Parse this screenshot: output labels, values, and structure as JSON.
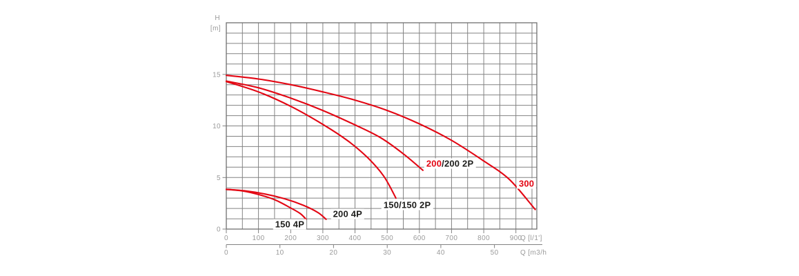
{
  "page": {
    "background": "#ffffff"
  },
  "chart_data": {
    "type": "line",
    "title": "",
    "description": "Pump performance curves: head H [m] versus flow rate Q",
    "grid": true,
    "legend_position": "inline-labels-on-curves",
    "y_axis": {
      "label_lines": [
        "H",
        "[m]"
      ],
      "ticks": [
        0,
        5,
        10,
        15
      ],
      "range": [
        0,
        20
      ],
      "grid_step": 1
    },
    "x_axis_primary": {
      "unit_label": "Q [l/1']",
      "ticks": [
        0,
        100,
        200,
        300,
        400,
        500,
        600,
        700,
        800,
        900
      ],
      "range": [
        0,
        965
      ],
      "grid_step": 50
    },
    "x_axis_secondary": {
      "unit_label": "Q [m3/h",
      "ticks": [
        0,
        10,
        20,
        30,
        40,
        50
      ],
      "l_per_min_per_unit": 16.6667
    },
    "colors": {
      "curve": "#e30613",
      "grid": "#828282",
      "border": "#6f6f6f",
      "axis_text": "#9a9a9a",
      "label_text": "#1d1d1b"
    },
    "series": [
      {
        "name": "150 4P",
        "points": [
          [
            0,
            3.85
          ],
          [
            50,
            3.7
          ],
          [
            100,
            3.35
          ],
          [
            150,
            2.85
          ],
          [
            200,
            2.05
          ],
          [
            230,
            1.5
          ],
          [
            248,
            0.95
          ]
        ],
        "label": {
          "q": 197,
          "h": 0.5,
          "parts": [
            {
              "text": "150 4P",
              "color": "#1d1d1b"
            }
          ]
        }
      },
      {
        "name": "200 4P",
        "points": [
          [
            0,
            3.85
          ],
          [
            60,
            3.7
          ],
          [
            120,
            3.4
          ],
          [
            180,
            2.95
          ],
          [
            240,
            2.3
          ],
          [
            285,
            1.6
          ],
          [
            310,
            0.95
          ]
        ],
        "label": {
          "q": 377,
          "h": 1.45,
          "parts": [
            {
              "text": "200 4P",
              "color": "#1d1d1b"
            }
          ]
        }
      },
      {
        "name": "150/150 2P",
        "points": [
          [
            0,
            14.3
          ],
          [
            100,
            13.3
          ],
          [
            200,
            11.9
          ],
          [
            300,
            10.15
          ],
          [
            380,
            8.5
          ],
          [
            440,
            6.9
          ],
          [
            490,
            5.1
          ],
          [
            527,
            3.0
          ]
        ],
        "label": {
          "q": 562,
          "h": 2.35,
          "parts": [
            {
              "text": "150/150 2P",
              "color": "#1d1d1b"
            }
          ]
        }
      },
      {
        "name": "200/200 2P",
        "points": [
          [
            0,
            14.35
          ],
          [
            100,
            13.7
          ],
          [
            200,
            12.7
          ],
          [
            300,
            11.5
          ],
          [
            400,
            10.1
          ],
          [
            480,
            8.85
          ],
          [
            550,
            7.3
          ],
          [
            611,
            5.7
          ]
        ],
        "label": {
          "q": 695,
          "h": 6.35,
          "parts": [
            {
              "text": "200",
              "color": "#e30613"
            },
            {
              "text": "/200 2P",
              "color": "#1d1d1b"
            }
          ]
        }
      },
      {
        "name": "300",
        "points": [
          [
            0,
            14.9
          ],
          [
            100,
            14.55
          ],
          [
            200,
            14.0
          ],
          [
            300,
            13.3
          ],
          [
            400,
            12.5
          ],
          [
            500,
            11.5
          ],
          [
            600,
            10.2
          ],
          [
            700,
            8.6
          ],
          [
            800,
            6.6
          ],
          [
            880,
            4.8
          ],
          [
            960,
            1.9
          ]
        ],
        "label": {
          "q": 933,
          "h": 4.4,
          "parts": [
            {
              "text": "300",
              "color": "#e30613"
            }
          ]
        }
      }
    ]
  }
}
